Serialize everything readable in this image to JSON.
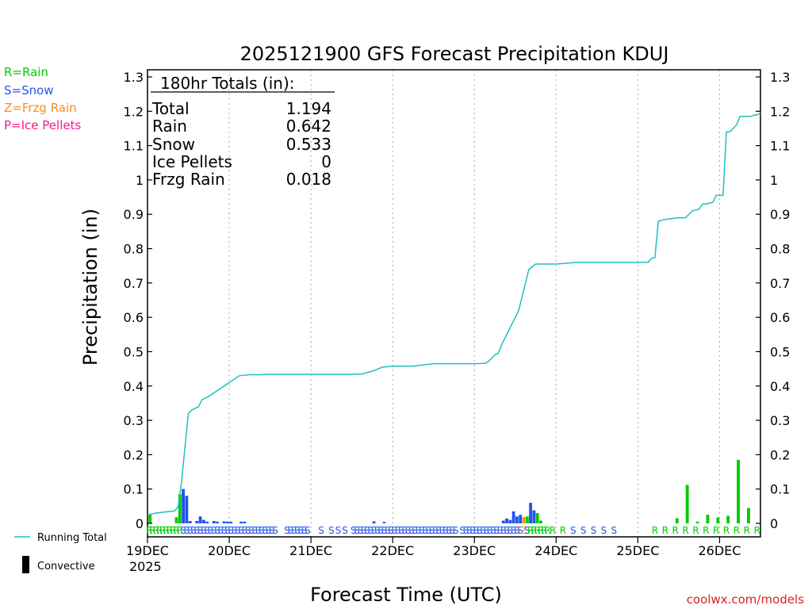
{
  "chart_data": {
    "type": "bar",
    "title": "2025121900 GFS Forecast Precipitation KDUJ",
    "xlabel": "Forecast Time (UTC)",
    "ylabel": "Precipitation (in)",
    "ylim": [
      0,
      1.3
    ],
    "xlim_hours": [
      0,
      180
    ],
    "y_ticks": [
      "0",
      "0.1",
      "0.2",
      "0.3",
      "0.4",
      "0.5",
      "0.6",
      "0.7",
      "0.8",
      "0.9",
      "1",
      "1.1",
      "1.2",
      "1.3"
    ],
    "x_ticks": [
      {
        "hour": 0,
        "label": "19DEC",
        "sublabel": "2025"
      },
      {
        "hour": 24,
        "label": "20DEC"
      },
      {
        "hour": 48,
        "label": "21DEC"
      },
      {
        "hour": 72,
        "label": "22DEC"
      },
      {
        "hour": 96,
        "label": "23DEC"
      },
      {
        "hour": 120,
        "label": "24DEC"
      },
      {
        "hour": 144,
        "label": "25DEC"
      },
      {
        "hour": 168,
        "label": "26DEC"
      }
    ],
    "precip_type_legend": [
      {
        "label": "R=Rain",
        "color": "#00cc00"
      },
      {
        "label": "S=Snow",
        "color": "#2255ee"
      },
      {
        "label": "Z=Frzg Rain",
        "color": "#ff8c1a"
      },
      {
        "label": "P=Ice Pellets",
        "color": "#ff1493"
      }
    ],
    "totals": {
      "header": "180hr Totals (in):",
      "rows": [
        {
          "label": "Total",
          "value": "1.194"
        },
        {
          "label": "Rain",
          "value": "0.642"
        },
        {
          "label": "Snow",
          "value": "0.533"
        },
        {
          "label": "Ice Pellets",
          "value": "0"
        },
        {
          "label": "Frzg Rain",
          "value": "0.018"
        }
      ]
    },
    "series_legend": {
      "running_total": "Running Total",
      "convective": "Convective"
    },
    "running_total": {
      "name": "Running Total",
      "color": "#20c0c0",
      "hours": [
        0,
        3,
        6,
        8,
        9,
        10,
        11,
        12,
        13,
        14,
        15,
        16,
        18,
        21,
        24,
        27,
        30,
        33,
        36,
        42,
        48,
        54,
        60,
        63,
        66,
        69,
        72,
        78,
        84,
        90,
        96,
        99,
        100,
        101,
        102,
        103,
        104,
        105,
        106,
        107,
        108,
        109,
        110,
        111,
        112,
        114,
        117,
        120,
        126,
        132,
        138,
        144,
        147,
        148,
        149,
        150,
        152,
        156,
        158,
        160,
        162,
        163,
        164,
        166,
        167,
        168,
        169,
        170,
        171,
        173,
        174,
        175,
        176,
        177,
        178,
        179,
        180
      ],
      "values": [
        0.025,
        0.031,
        0.034,
        0.036,
        0.05,
        0.12,
        0.22,
        0.32,
        0.33,
        0.335,
        0.34,
        0.36,
        0.37,
        0.39,
        0.41,
        0.43,
        0.433,
        0.433,
        0.434,
        0.434,
        0.434,
        0.434,
        0.434,
        0.435,
        0.443,
        0.455,
        0.458,
        0.458,
        0.465,
        0.465,
        0.465,
        0.466,
        0.47,
        0.48,
        0.49,
        0.495,
        0.52,
        0.54,
        0.56,
        0.58,
        0.6,
        0.62,
        0.66,
        0.7,
        0.74,
        0.755,
        0.755,
        0.755,
        0.76,
        0.76,
        0.76,
        0.76,
        0.76,
        0.772,
        0.774,
        0.88,
        0.885,
        0.89,
        0.89,
        0.91,
        0.915,
        0.93,
        0.93,
        0.935,
        0.955,
        0.955,
        0.955,
        1.14,
        1.14,
        1.16,
        1.185,
        1.185,
        1.185,
        1.185,
        1.188,
        1.19,
        1.194
      ]
    },
    "bars": {
      "hours": [
        0.75,
        8.5,
        9.5,
        10.5,
        11.5,
        12.5,
        14.5,
        15.5,
        16.5,
        17.5,
        19.5,
        20.5,
        22.5,
        23.5,
        24.5,
        27.5,
        28.5,
        66.5,
        69.5,
        104.5,
        105.5,
        106.5,
        107.5,
        108.5,
        109.5,
        110.5,
        111.5,
        112.5,
        113.5,
        114.5,
        115.5,
        155.5,
        158.5,
        161.5,
        164.5,
        167.5,
        170.5,
        173.5,
        176.5
      ],
      "values": [
        0.025,
        0.018,
        0.085,
        0.1,
        0.08,
        0.007,
        0.007,
        0.02,
        0.01,
        0.005,
        0.007,
        0.005,
        0.006,
        0.005,
        0.005,
        0.005,
        0.005,
        0.006,
        0.004,
        0.008,
        0.014,
        0.01,
        0.035,
        0.02,
        0.025,
        0.018,
        0.02,
        0.06,
        0.038,
        0.03,
        0.008,
        0.015,
        0.112,
        0.005,
        0.025,
        0.017,
        0.022,
        0.185,
        0.045
      ],
      "types": [
        "R",
        "R",
        "R",
        "S",
        "S",
        "S",
        "S",
        "S",
        "S",
        "S",
        "S",
        "S",
        "S",
        "S",
        "S",
        "S",
        "S",
        "S",
        "S",
        "S",
        "S",
        "S",
        "S",
        "S",
        "S",
        "Z",
        "R",
        "S",
        "S",
        "R",
        "R",
        "R",
        "R",
        "R",
        "R",
        "R",
        "R",
        "R",
        "R"
      ]
    },
    "type_strip": [
      {
        "hours": [
          0.5,
          1.5,
          2.5,
          3.5,
          4.5,
          5.5,
          6.5,
          7.5,
          8.5,
          9.5
        ],
        "symbol": "R",
        "color": "#00cc00"
      },
      {
        "hours": [
          10.5,
          11.5,
          12.5,
          13.5,
          14.5,
          15.5,
          16.5,
          17.5,
          18.5,
          19.5,
          20.5,
          21.5,
          22.5,
          23.5,
          24.5,
          25.5,
          26.5,
          27.5,
          28.5,
          29.5,
          30.5,
          31.5,
          32.5,
          33.5,
          34.5,
          35.5,
          36.5,
          37.5
        ],
        "symbol": "S",
        "color": "#2255ee"
      },
      {
        "hours": [
          41,
          42,
          43,
          44,
          45,
          46,
          47,
          51,
          54,
          56,
          58
        ],
        "symbol": "S",
        "color": "#2255ee"
      },
      {
        "hours": [
          60.5,
          61.5,
          62.5,
          63.5,
          64.5,
          65.5,
          66.5,
          67.5,
          68.5,
          69.5,
          70.5,
          71.5,
          72.5,
          73.5,
          74.5,
          75.5,
          76.5,
          77.5,
          78.5,
          79.5,
          80.5,
          81.5,
          82.5,
          83.5,
          84.5,
          85.5,
          86.5,
          87.5,
          88.5,
          89.5,
          90.5
        ],
        "symbol": "S",
        "color": "#2255ee"
      },
      {
        "hours": [
          92.5,
          93.5,
          94.5,
          95.5,
          96.5,
          97.5,
          98.5,
          99.5,
          100.5,
          101.5,
          102.5,
          103.5,
          104.5,
          105.5,
          106.5,
          107.5,
          108.5,
          109.5
        ],
        "symbol": "S",
        "color": "#2255ee"
      },
      {
        "hours": [
          110.5
        ],
        "symbol": "Z",
        "color": "#ff8c1a"
      },
      {
        "hours": [
          111.5
        ],
        "symbol": "S",
        "color": "#2255ee"
      },
      {
        "hours": [
          112.5,
          113.5,
          114.5,
          115.5,
          116.5,
          117.5,
          119,
          122
        ],
        "symbol": "R",
        "color": "#00cc00"
      },
      {
        "hours": [
          125,
          128,
          131,
          134,
          137
        ],
        "symbol": "S",
        "color": "#2255ee"
      },
      {
        "hours": [
          149,
          152,
          155,
          158,
          161,
          164,
          167,
          170,
          173,
          176,
          179
        ],
        "symbol": "R",
        "color": "#00cc00"
      }
    ],
    "convective": {
      "values": []
    },
    "watermark": "coolwx.com/models"
  }
}
